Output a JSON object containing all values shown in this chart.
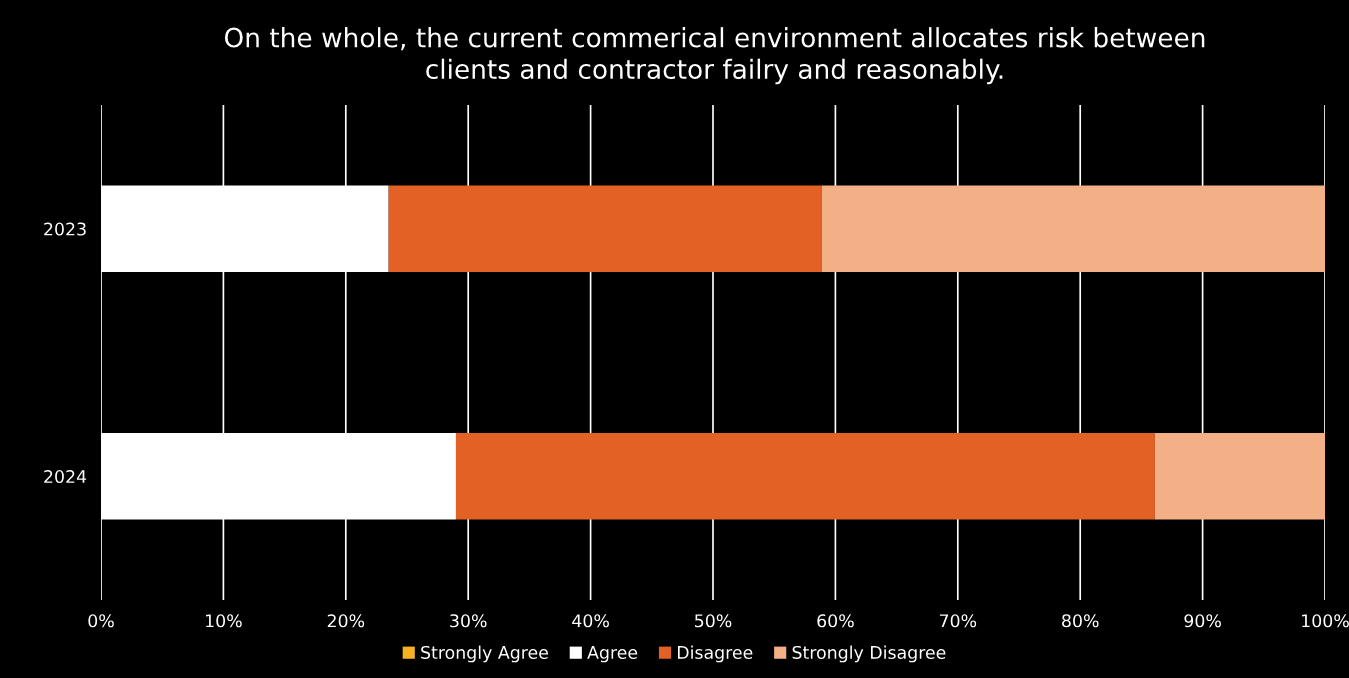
{
  "chart_data": {
    "type": "bar",
    "orientation": "horizontal",
    "stacked": true,
    "title": "On the whole, the current commerical environment allocates risk between\nclients and contractor failry and reasonably.",
    "categories": [
      "2023",
      "2024"
    ],
    "series": [
      {
        "name": "Strongly Agree",
        "color": "#f5b324",
        "values": [
          0,
          0
        ]
      },
      {
        "name": "Agree",
        "color": "#ffffff",
        "values": [
          23.5,
          29.0
        ]
      },
      {
        "name": "Disagree",
        "color": "#e36124",
        "values": [
          35.4,
          57.1
        ]
      },
      {
        "name": "Strongly Disagree",
        "color": "#f3af85",
        "values": [
          41.1,
          13.9
        ]
      }
    ],
    "xlim": [
      0,
      100
    ],
    "xticks": [
      {
        "value": 0,
        "label": "0%"
      },
      {
        "value": 10,
        "label": "10%"
      },
      {
        "value": 20,
        "label": "20%"
      },
      {
        "value": 30,
        "label": "30%"
      },
      {
        "value": 40,
        "label": "40%"
      },
      {
        "value": 50,
        "label": "50%"
      },
      {
        "value": 60,
        "label": "60%"
      },
      {
        "value": 70,
        "label": "70%"
      },
      {
        "value": 80,
        "label": "80%"
      },
      {
        "value": 90,
        "label": "90%"
      },
      {
        "value": 100,
        "label": "100%"
      }
    ],
    "grid": "x",
    "legend": "bottom"
  }
}
